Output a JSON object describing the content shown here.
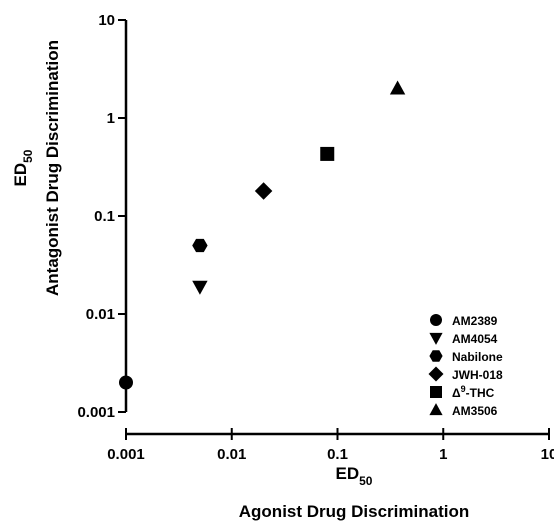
{
  "chart_data": {
    "type": "scatter",
    "x_scale": "log",
    "y_scale": "log",
    "xlim": [
      0.001,
      10
    ],
    "ylim": [
      0.001,
      10
    ],
    "x_ticks": [
      "0.001",
      "0.01",
      "0.1",
      "1",
      "10"
    ],
    "y_ticks": [
      "0.001",
      "0.01",
      "0.1",
      "1",
      "10"
    ],
    "xlabel": {
      "line1": "ED",
      "line1_sub": "50",
      "line2": "Agonist Drug Discrimination"
    },
    "ylabel": {
      "line1": "ED",
      "line1_sub": "50",
      "line2": "Antagonist Drug Discrimination"
    },
    "grid": false,
    "legend_position": "bottom-right",
    "series": [
      {
        "name": "AM2389",
        "marker": "circle",
        "x": 0.001,
        "y": 0.002
      },
      {
        "name": "AM4054",
        "marker": "triangle-down",
        "x": 0.005,
        "y": 0.019
      },
      {
        "name": "Nabilone",
        "marker": "hexagon",
        "x": 0.005,
        "y": 0.05
      },
      {
        "name": "JWH-018",
        "marker": "diamond",
        "x": 0.02,
        "y": 0.18
      },
      {
        "name": "Δ⁹-THC",
        "marker": "square",
        "x": 0.08,
        "y": 0.43,
        "name_parts": {
          "prefix": "Δ",
          "sup": "9",
          "suffix": "-THC"
        }
      },
      {
        "name": "AM3506",
        "marker": "triangle-up",
        "x": 0.37,
        "y": 2.0
      }
    ]
  }
}
